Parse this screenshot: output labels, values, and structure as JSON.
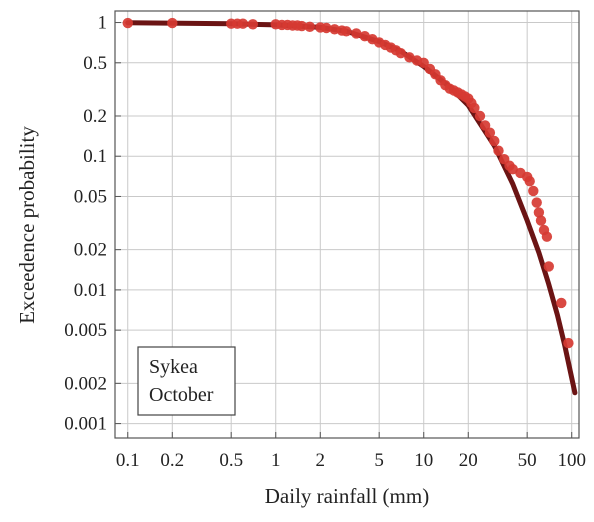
{
  "chart_data": {
    "type": "scatter",
    "xscale": "log",
    "yscale": "log",
    "xlabel": "Daily rainfall (mm)",
    "ylabel": "Exceedence probability",
    "xlim": [
      0.1,
      100
    ],
    "ylim": [
      0.001,
      1
    ],
    "grid": true,
    "x_ticks": [
      "0.1",
      "0.2",
      "0.5",
      "1",
      "2",
      "5",
      "10",
      "20",
      "50",
      "100"
    ],
    "y_ticks": [
      "0.001",
      "0.002",
      "0.005",
      "0.01",
      "0.02",
      "0.05",
      "0.1",
      "0.2",
      "0.5",
      "1"
    ],
    "legend": {
      "placement": "bottom-left",
      "lines": [
        "Sykea",
        "October"
      ]
    },
    "colors": {
      "points": "#d63a32",
      "fit_line": "#6b1414"
    },
    "series": [
      {
        "type": "scatter",
        "points": [
          [
            0.1,
            0.99
          ],
          [
            0.2,
            0.99
          ],
          [
            0.5,
            0.98
          ],
          [
            0.55,
            0.98
          ],
          [
            0.6,
            0.98
          ],
          [
            0.7,
            0.97
          ],
          [
            1.0,
            0.97
          ],
          [
            1.1,
            0.96
          ],
          [
            1.2,
            0.96
          ],
          [
            1.3,
            0.95
          ],
          [
            1.4,
            0.95
          ],
          [
            1.5,
            0.94
          ],
          [
            1.7,
            0.93
          ],
          [
            2.0,
            0.92
          ],
          [
            2.2,
            0.91
          ],
          [
            2.5,
            0.89
          ],
          [
            2.8,
            0.87
          ],
          [
            3.0,
            0.86
          ],
          [
            3.5,
            0.83
          ],
          [
            4.0,
            0.79
          ],
          [
            4.5,
            0.75
          ],
          [
            5.0,
            0.71
          ],
          [
            5.5,
            0.68
          ],
          [
            6.0,
            0.65
          ],
          [
            6.5,
            0.62
          ],
          [
            7.0,
            0.59
          ],
          [
            8.0,
            0.55
          ],
          [
            9.0,
            0.52
          ],
          [
            10.0,
            0.5
          ],
          [
            11.0,
            0.45
          ],
          [
            12.0,
            0.41
          ],
          [
            13.0,
            0.37
          ],
          [
            14.0,
            0.34
          ],
          [
            15.0,
            0.32
          ],
          [
            16.0,
            0.31
          ],
          [
            17.0,
            0.3
          ],
          [
            18.0,
            0.29
          ],
          [
            19.0,
            0.28
          ],
          [
            20.0,
            0.27
          ],
          [
            21.0,
            0.25
          ],
          [
            22.0,
            0.23
          ],
          [
            24.0,
            0.2
          ],
          [
            26.0,
            0.17
          ],
          [
            28.0,
            0.15
          ],
          [
            30.0,
            0.13
          ],
          [
            32.0,
            0.11
          ],
          [
            35.0,
            0.095
          ],
          [
            38.0,
            0.085
          ],
          [
            40.0,
            0.08
          ],
          [
            45.0,
            0.075
          ],
          [
            50.0,
            0.07
          ],
          [
            52.0,
            0.065
          ],
          [
            55.0,
            0.055
          ],
          [
            58.0,
            0.045
          ],
          [
            60.0,
            0.038
          ],
          [
            62.0,
            0.033
          ],
          [
            65.0,
            0.028
          ],
          [
            68.0,
            0.025
          ],
          [
            70.0,
            0.015
          ],
          [
            85.0,
            0.008
          ],
          [
            95.0,
            0.004
          ]
        ]
      },
      {
        "type": "line",
        "points": [
          [
            0.1,
            0.995
          ],
          [
            0.5,
            0.98
          ],
          [
            1.0,
            0.96
          ],
          [
            2.0,
            0.92
          ],
          [
            3.0,
            0.86
          ],
          [
            5.0,
            0.72
          ],
          [
            7.0,
            0.61
          ],
          [
            10.0,
            0.47
          ],
          [
            15.0,
            0.33
          ],
          [
            20.0,
            0.24
          ],
          [
            30.0,
            0.12
          ],
          [
            40.0,
            0.062
          ],
          [
            50.0,
            0.033
          ],
          [
            60.0,
            0.019
          ],
          [
            70.0,
            0.011
          ],
          [
            80.0,
            0.0065
          ],
          [
            90.0,
            0.0038
          ],
          [
            100.0,
            0.0022
          ],
          [
            105.0,
            0.0017
          ]
        ]
      }
    ]
  }
}
